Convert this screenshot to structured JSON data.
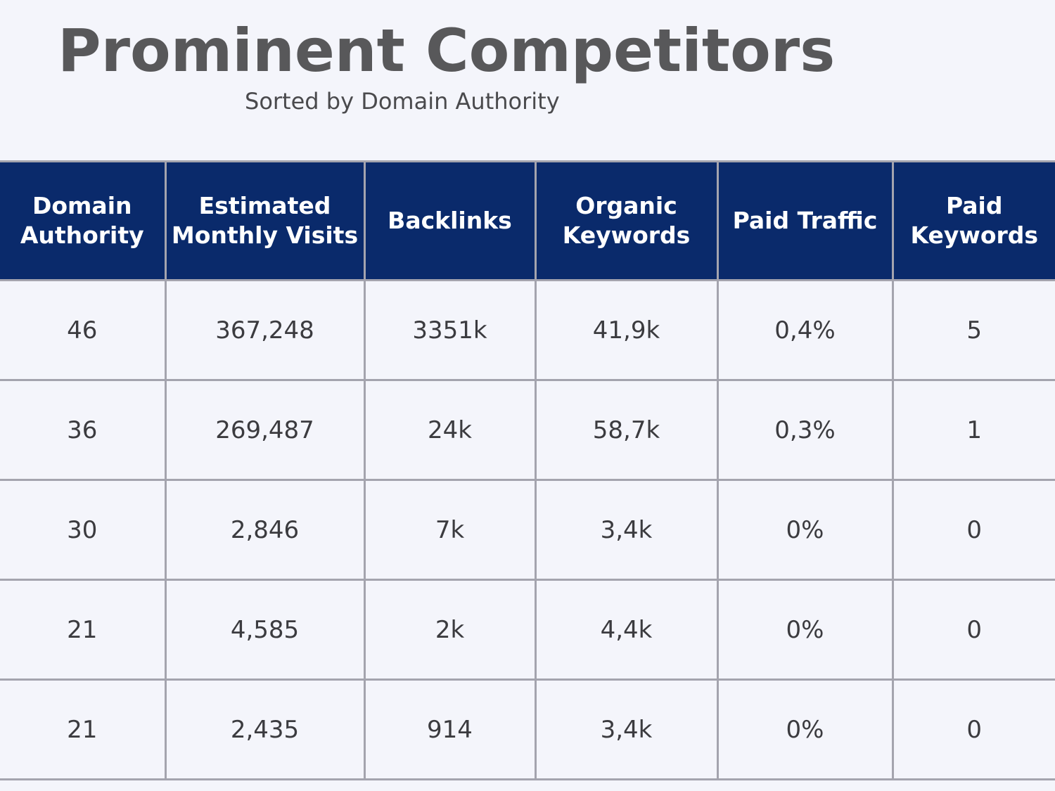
{
  "header": {
    "title": "Prominent Competitors",
    "subtitle": "Sorted by Domain Authority"
  },
  "table": {
    "columns": [
      "Domain Authority",
      "Estimated Monthly Visits",
      "Backlinks",
      "Organic Keywords",
      "Paid Traffic",
      "Paid Keywords"
    ],
    "rows": [
      [
        "46",
        "367,248",
        "3351k",
        "41,9k",
        "0,4%",
        "5"
      ],
      [
        "36",
        "269,487",
        "24k",
        "58,7k",
        "0,3%",
        "1"
      ],
      [
        "30",
        "2,846",
        "7k",
        "3,4k",
        "0%",
        "0"
      ],
      [
        "21",
        "4,585",
        "2k",
        "4,4k",
        "0%",
        "0"
      ],
      [
        "21",
        "2,435",
        "914",
        "3,4k",
        "0%",
        "0"
      ]
    ]
  },
  "colors": {
    "header_background": "#0a2a6b",
    "header_text": "#ffffff",
    "title_text": "#58585a",
    "grid_lines": "#a4a4ae",
    "page_background": "#f4f5fb"
  }
}
